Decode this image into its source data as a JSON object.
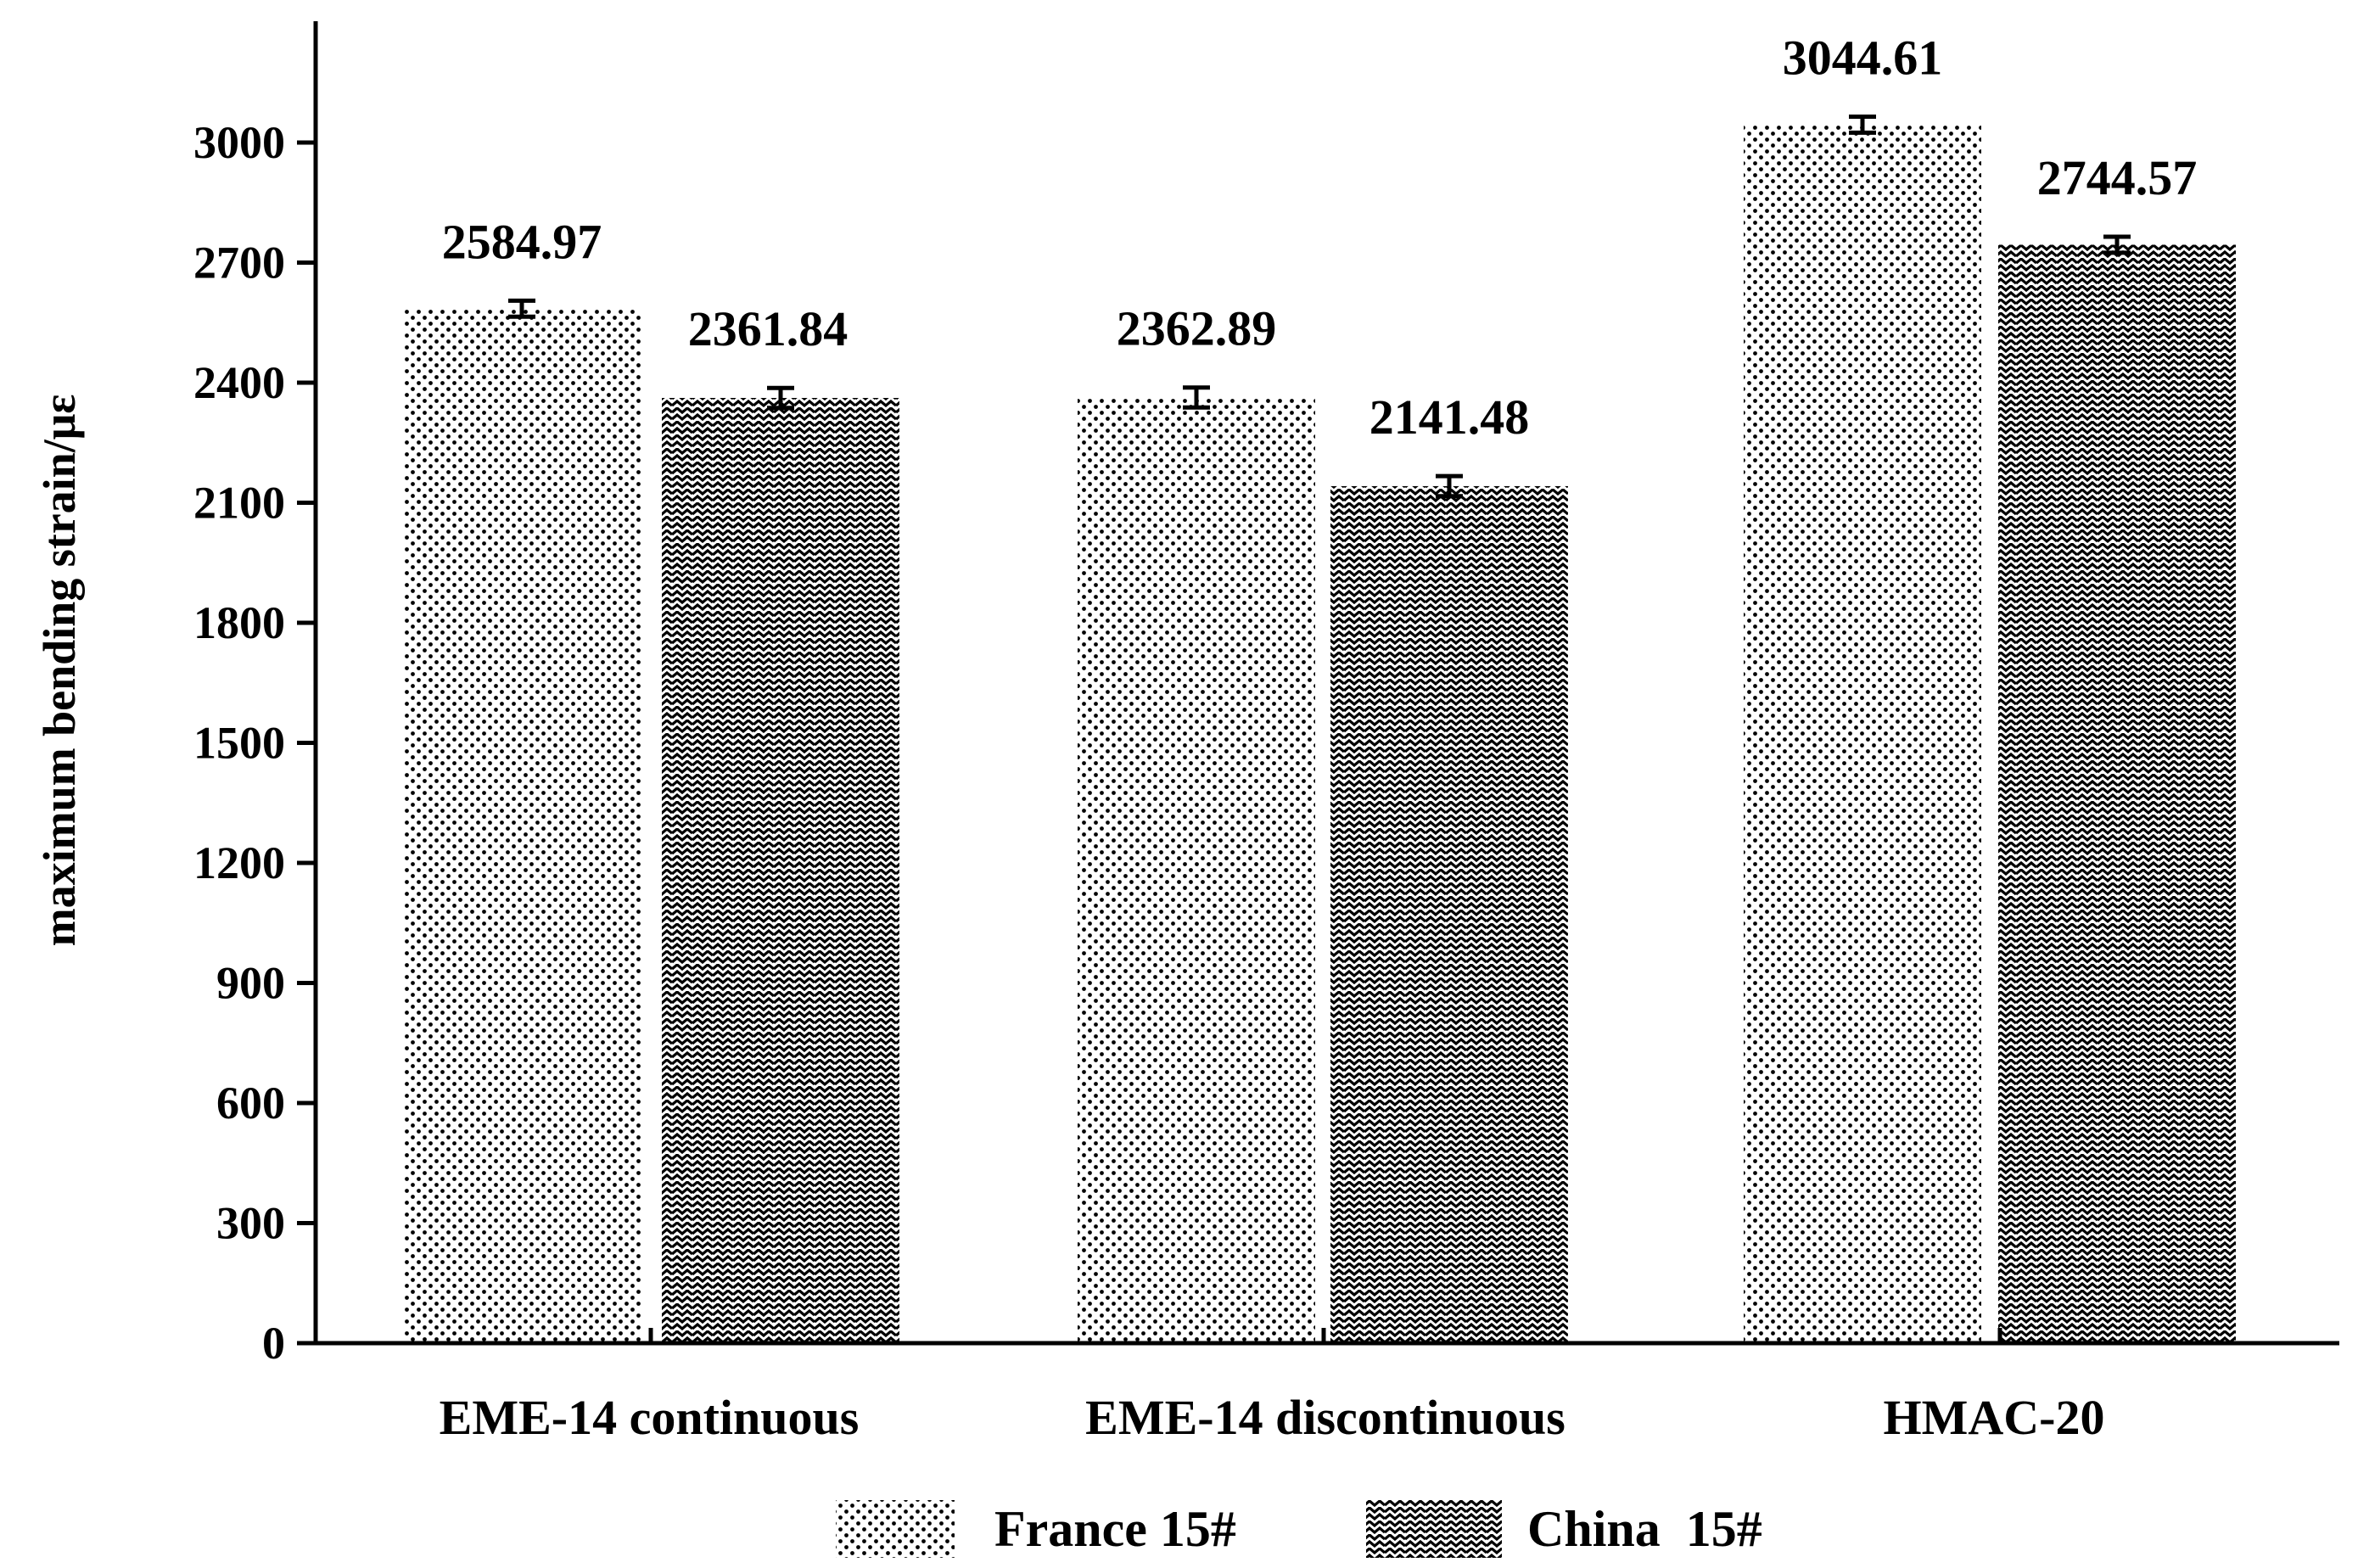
{
  "chart_data": {
    "type": "bar",
    "categories": [
      "EME-14 continuous",
      "EME-14 discontinuous",
      "HMAC-20"
    ],
    "series": [
      {
        "name": "France 15#",
        "values": [
          2584.97,
          2362.89,
          3044.61
        ],
        "labels": [
          "2584.97",
          "2362.89",
          "3044.61"
        ],
        "errors": [
          20,
          25,
          20
        ],
        "pattern": "dots"
      },
      {
        "name": "China  15#",
        "values": [
          2361.84,
          2141.48,
          2744.57
        ],
        "labels": [
          "2361.84",
          "2141.48",
          "2744.57"
        ],
        "errors": [
          25,
          25,
          20
        ],
        "pattern": "zigzag"
      }
    ],
    "title": "",
    "xlabel": "",
    "ylabel": "maximum bending strain/με",
    "ylim": [
      0,
      3350
    ],
    "yticks": [
      0,
      300,
      600,
      900,
      1200,
      1500,
      1800,
      2100,
      2400,
      2700,
      3000
    ],
    "ytick_labels": [
      "0",
      "300",
      "600",
      "900",
      "1200",
      "1500",
      "1800",
      "2100",
      "2400",
      "2700",
      "3000"
    ],
    "grid": false,
    "legend": "bottom"
  }
}
